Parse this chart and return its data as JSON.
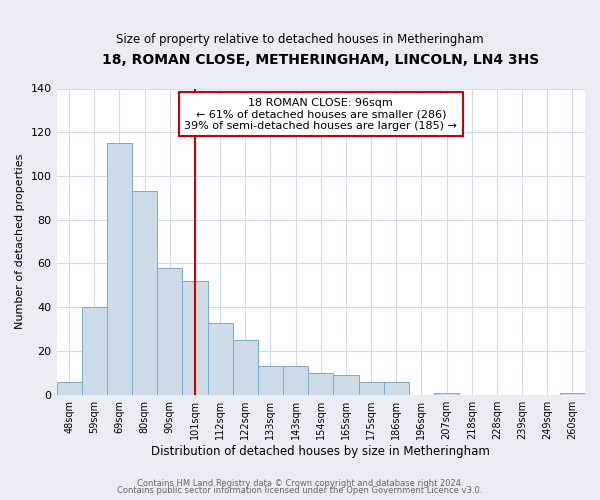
{
  "title": "18, ROMAN CLOSE, METHERINGHAM, LINCOLN, LN4 3HS",
  "subtitle": "Size of property relative to detached houses in Metheringham",
  "xlabel": "Distribution of detached houses by size in Metheringham",
  "ylabel": "Number of detached properties",
  "bar_labels": [
    "48sqm",
    "59sqm",
    "69sqm",
    "80sqm",
    "90sqm",
    "101sqm",
    "112sqm",
    "122sqm",
    "133sqm",
    "143sqm",
    "154sqm",
    "165sqm",
    "175sqm",
    "186sqm",
    "196sqm",
    "207sqm",
    "218sqm",
    "228sqm",
    "239sqm",
    "249sqm",
    "260sqm"
  ],
  "bar_values": [
    6,
    40,
    115,
    93,
    58,
    52,
    33,
    25,
    13,
    13,
    10,
    9,
    6,
    6,
    0,
    1,
    0,
    0,
    0,
    0,
    1
  ],
  "bar_color": "#cddce8",
  "bar_edge_color": "#7aaac8",
  "vline_x": 5,
  "vline_color": "#cc0000",
  "annotation_title": "18 ROMAN CLOSE: 96sqm",
  "annotation_line1": "← 61% of detached houses are smaller (286)",
  "annotation_line2": "39% of semi-detached houses are larger (185) →",
  "annotation_box_color": "#cc0000",
  "ylim": [
    0,
    140
  ],
  "yticks": [
    0,
    20,
    40,
    60,
    80,
    100,
    120,
    140
  ],
  "footer1": "Contains HM Land Registry data © Crown copyright and database right 2024.",
  "footer2": "Contains public sector information licensed under the Open Government Licence v3.0.",
  "fig_background_color": "#e8eef4",
  "plot_background_color": "#ffffff",
  "grid_color": "#d0dce8"
}
